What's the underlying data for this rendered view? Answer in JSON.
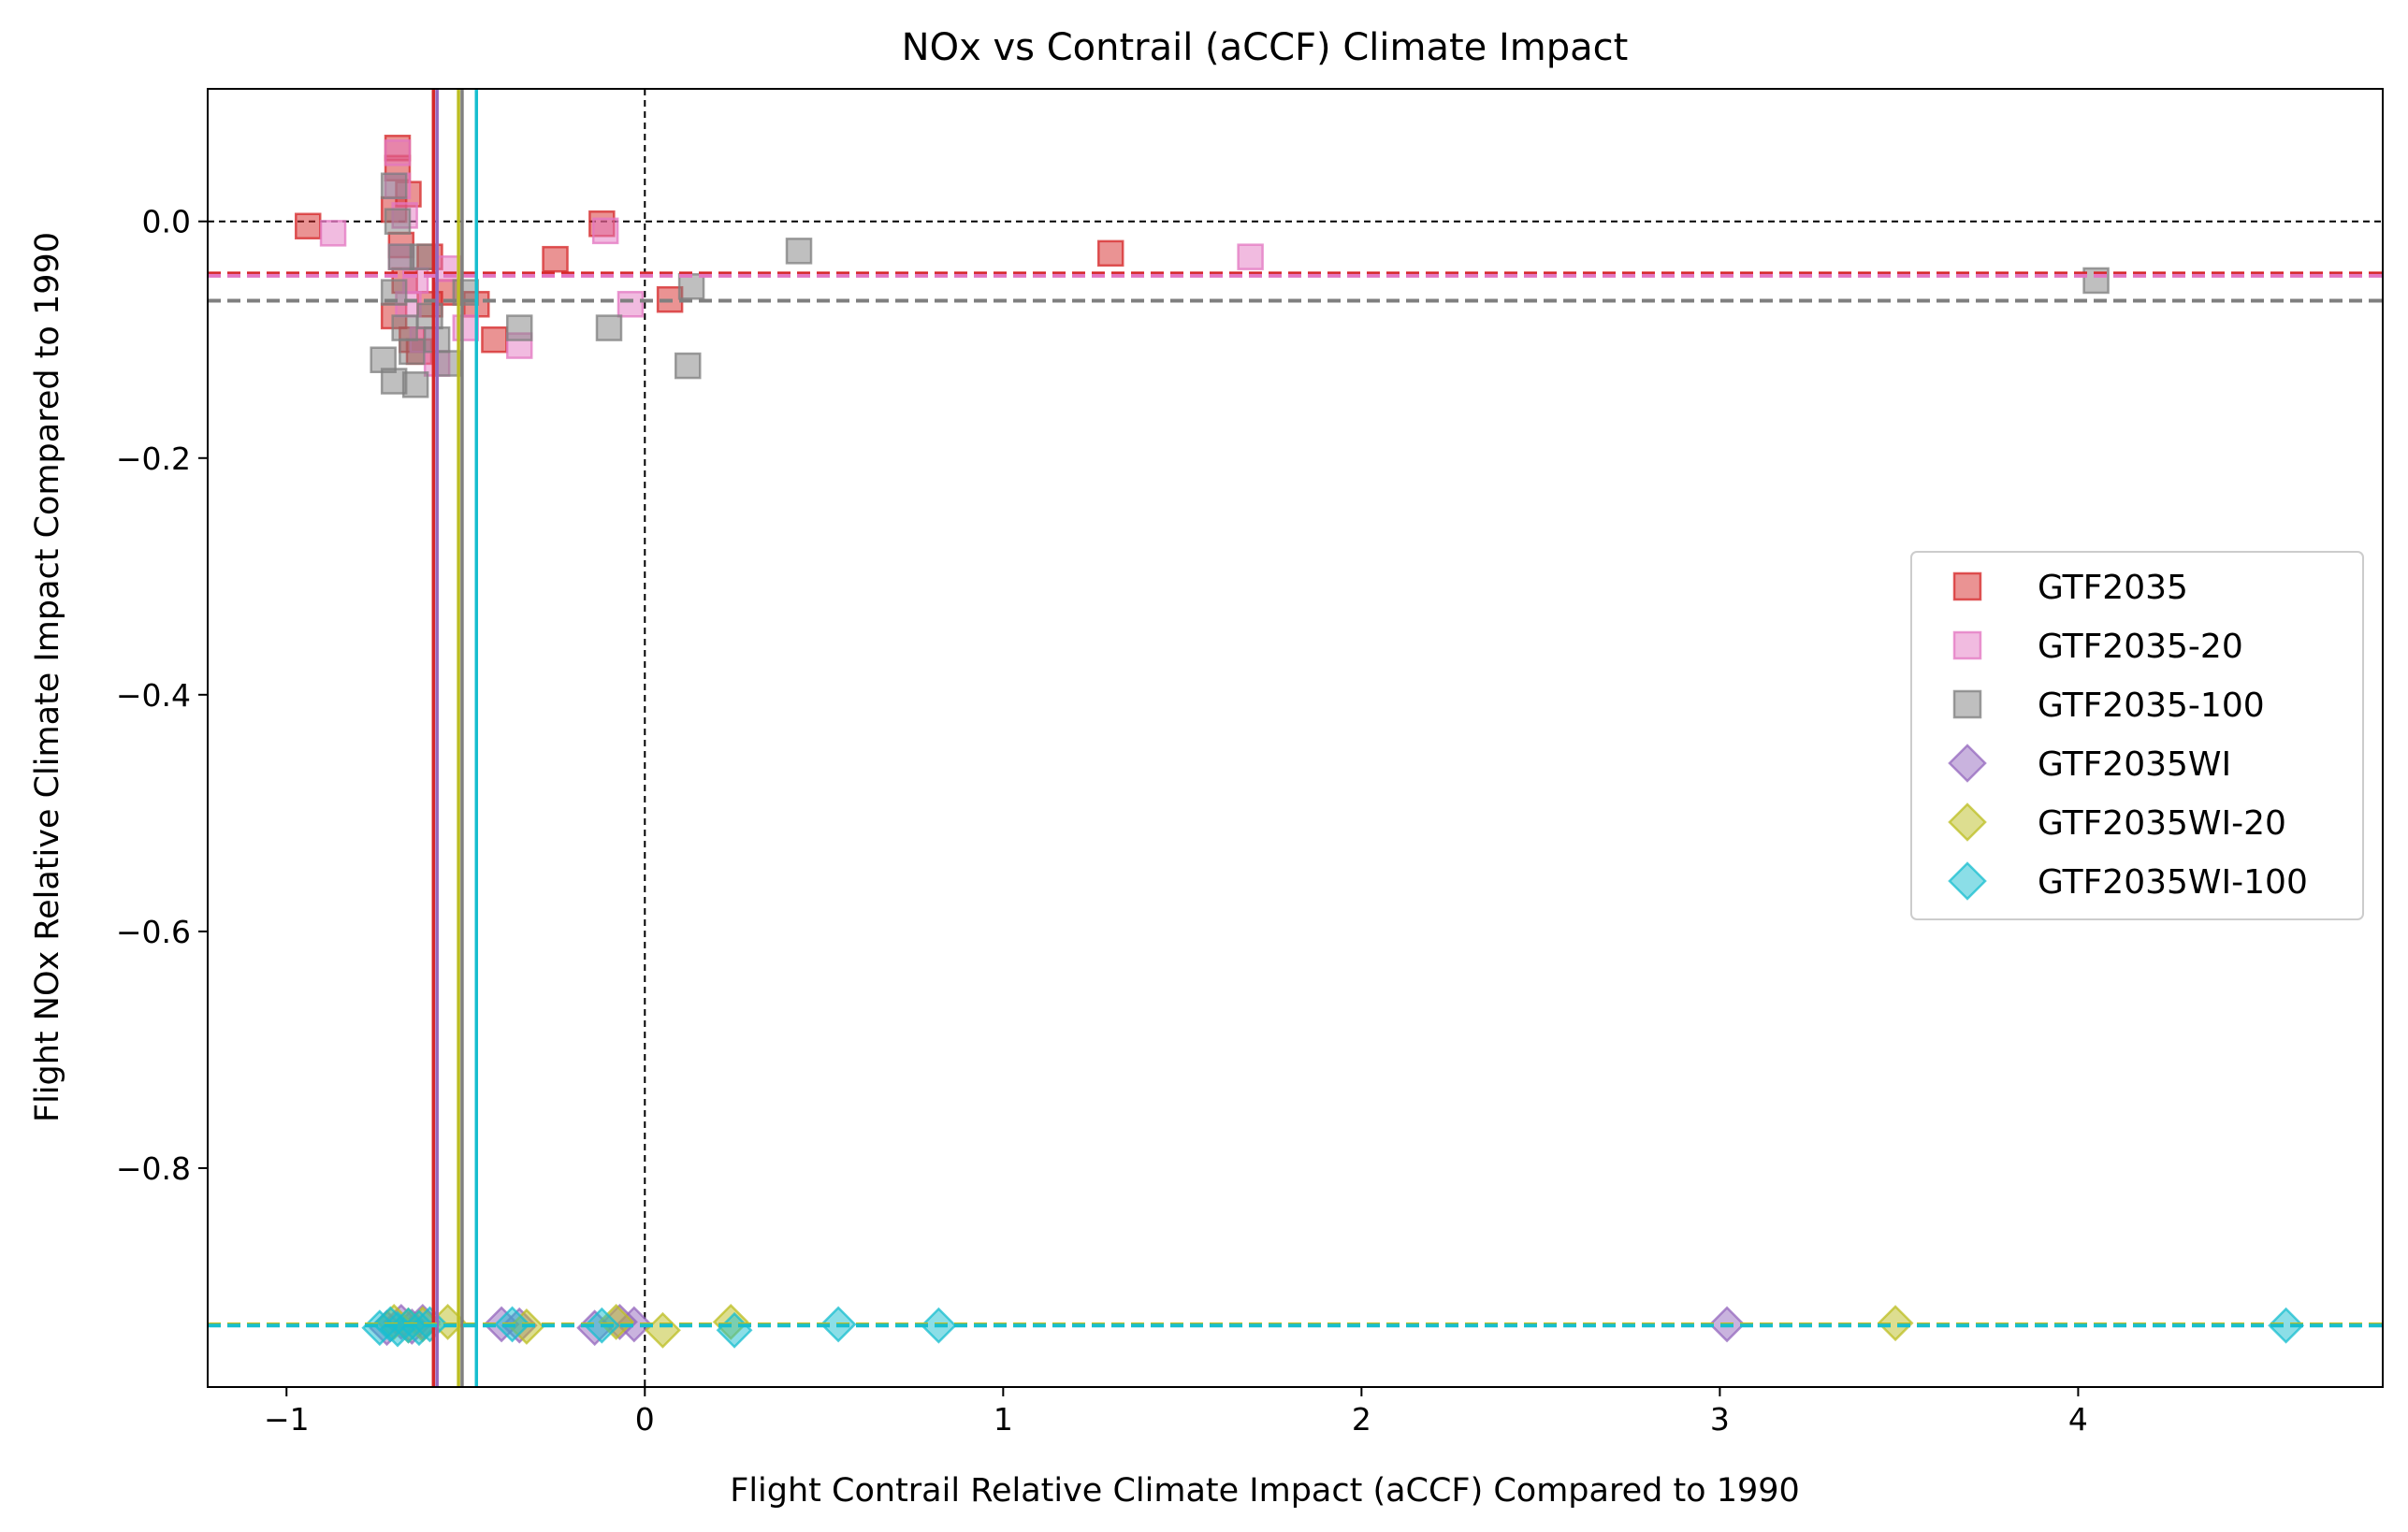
{
  "chart_data": {
    "type": "scatter",
    "title": "NOx vs Contrail (aCCF) Climate Impact",
    "xlabel": "Flight Contrail Relative Climate Impact (aCCF) Compared to 1990",
    "ylabel": "Flight NOx Relative Climate Impact Compared to 1990",
    "xlim": [
      -1.22,
      4.85
    ],
    "ylim": [
      -0.985,
      0.112
    ],
    "xticks": [
      -1,
      0,
      1,
      2,
      3,
      4
    ],
    "xtick_labels": [
      "−1",
      "0",
      "1",
      "2",
      "3",
      "4"
    ],
    "yticks": [
      0.0,
      -0.2,
      -0.4,
      -0.6,
      -0.8
    ],
    "ytick_labels": [
      "0.0",
      "−0.2",
      "−0.4",
      "−0.6",
      "−0.8"
    ],
    "grid": false,
    "legend_position": "center-right",
    "reference_lines": {
      "x": 0,
      "y": 0
    },
    "series": [
      {
        "name": "GTF2035",
        "marker": "square",
        "color": "#d62728",
        "mean_x": -0.59,
        "mean_y": -0.044,
        "points": [
          [
            -0.94,
            -0.004
          ],
          [
            -0.69,
            0.062
          ],
          [
            -0.69,
            0.045
          ],
          [
            -0.66,
            0.023
          ],
          [
            -0.7,
            0.01
          ],
          [
            -0.68,
            -0.02
          ],
          [
            -0.67,
            -0.05
          ],
          [
            -0.7,
            -0.08
          ],
          [
            -0.65,
            -0.1
          ],
          [
            -0.6,
            -0.07
          ],
          [
            -0.55,
            -0.06
          ],
          [
            -0.47,
            -0.07
          ],
          [
            -0.42,
            -0.1
          ],
          [
            -0.25,
            -0.032
          ],
          [
            -0.12,
            -0.002
          ],
          [
            0.07,
            -0.066
          ],
          [
            1.3,
            -0.027
          ],
          [
            -0.6,
            -0.03
          ],
          [
            -0.63,
            -0.11
          ]
        ]
      },
      {
        "name": "GTF2035-20",
        "marker": "square",
        "color": "#e377c2",
        "mean_x": -0.58,
        "mean_y": -0.046,
        "points": [
          [
            -0.87,
            -0.01
          ],
          [
            -0.69,
            0.058
          ],
          [
            -0.69,
            0.03
          ],
          [
            -0.67,
            0.005
          ],
          [
            -0.68,
            -0.03
          ],
          [
            -0.66,
            -0.07
          ],
          [
            -0.62,
            -0.1
          ],
          [
            -0.58,
            -0.12
          ],
          [
            -0.5,
            -0.09
          ],
          [
            -0.35,
            -0.105
          ],
          [
            -0.11,
            -0.008
          ],
          [
            -0.04,
            -0.07
          ],
          [
            1.69,
            -0.03
          ],
          [
            -0.64,
            -0.05
          ],
          [
            -0.55,
            -0.04
          ]
        ]
      },
      {
        "name": "GTF2035-100",
        "marker": "square",
        "color": "#7f7f7f",
        "mean_x": -0.51,
        "mean_y": -0.067,
        "points": [
          [
            -0.73,
            -0.117
          ],
          [
            -0.7,
            -0.135
          ],
          [
            -0.64,
            -0.138
          ],
          [
            -0.7,
            0.03
          ],
          [
            -0.69,
            0.0
          ],
          [
            -0.68,
            -0.03
          ],
          [
            -0.7,
            -0.06
          ],
          [
            -0.67,
            -0.09
          ],
          [
            -0.65,
            -0.11
          ],
          [
            -0.6,
            -0.08
          ],
          [
            -0.55,
            -0.12
          ],
          [
            -0.5,
            -0.06
          ],
          [
            -0.35,
            -0.09
          ],
          [
            -0.1,
            -0.09
          ],
          [
            0.12,
            -0.122
          ],
          [
            0.13,
            -0.055
          ],
          [
            0.43,
            -0.025
          ],
          [
            4.05,
            -0.05
          ],
          [
            -0.62,
            -0.03
          ],
          [
            -0.58,
            -0.1
          ]
        ]
      },
      {
        "name": "GTF2035WI",
        "marker": "diamond",
        "color": "#9467bd",
        "mean_x": -0.58,
        "mean_y": -0.932,
        "points": [
          [
            -0.72,
            -0.935
          ],
          [
            -0.68,
            -0.93
          ],
          [
            -0.65,
            -0.934
          ],
          [
            -0.62,
            -0.93
          ],
          [
            -0.4,
            -0.932
          ],
          [
            -0.35,
            -0.933
          ],
          [
            -0.14,
            -0.935
          ],
          [
            -0.07,
            -0.93
          ],
          [
            -0.03,
            -0.932
          ],
          [
            3.02,
            -0.932
          ]
        ]
      },
      {
        "name": "GTF2035WI-20",
        "marker": "diamond",
        "color": "#bcbd22",
        "mean_x": -0.52,
        "mean_y": -0.932,
        "points": [
          [
            -0.7,
            -0.93
          ],
          [
            -0.66,
            -0.933
          ],
          [
            -0.62,
            -0.932
          ],
          [
            -0.55,
            -0.93
          ],
          [
            -0.33,
            -0.934
          ],
          [
            -0.08,
            -0.93
          ],
          [
            0.05,
            -0.937
          ],
          [
            0.24,
            -0.93
          ],
          [
            3.49,
            -0.931
          ]
        ]
      },
      {
        "name": "GTF2035WI-100",
        "marker": "diamond",
        "color": "#17becf",
        "mean_x": -0.47,
        "mean_y": -0.933,
        "points": [
          [
            -0.74,
            -0.935
          ],
          [
            -0.71,
            -0.932
          ],
          [
            -0.69,
            -0.936
          ],
          [
            -0.66,
            -0.933
          ],
          [
            -0.63,
            -0.935
          ],
          [
            -0.6,
            -0.932
          ],
          [
            -0.37,
            -0.932
          ],
          [
            -0.12,
            -0.933
          ],
          [
            0.25,
            -0.937
          ],
          [
            0.54,
            -0.932
          ],
          [
            0.82,
            -0.933
          ],
          [
            4.58,
            -0.933
          ]
        ]
      }
    ]
  }
}
